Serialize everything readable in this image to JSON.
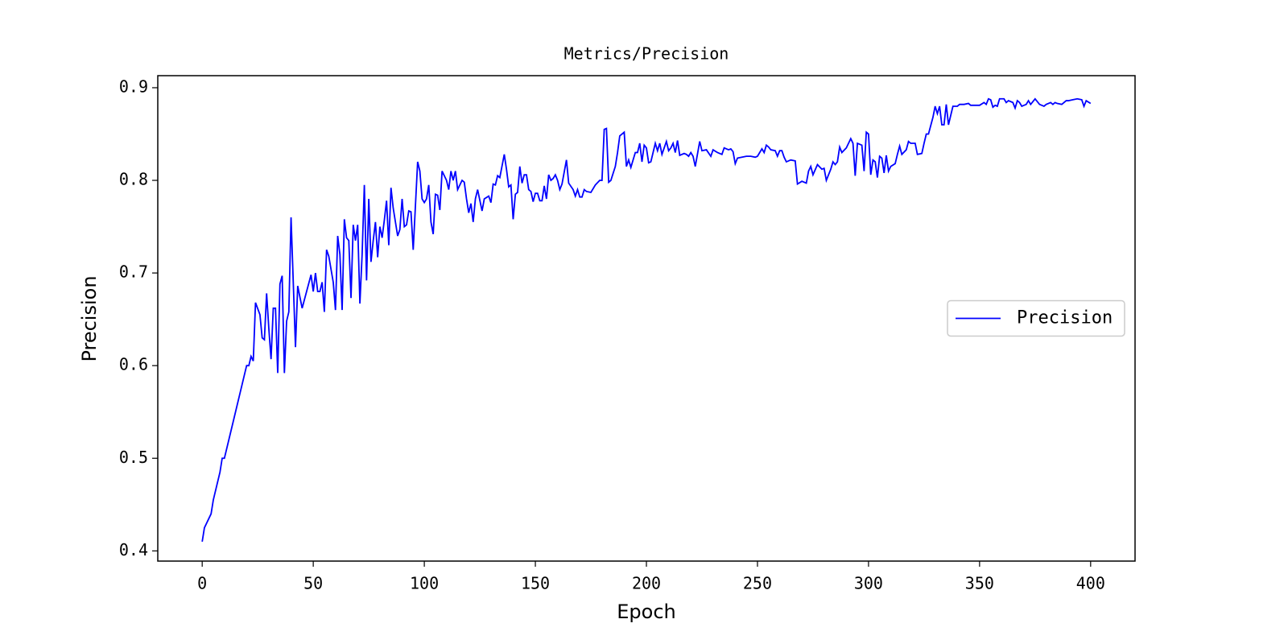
{
  "chart_data": {
    "type": "line",
    "title": "Metrics/Precision",
    "x_label": "Epoch",
    "y_label": "Precision",
    "x": [
      0,
      1,
      3,
      4,
      5,
      8,
      9,
      10,
      12,
      15,
      18,
      20,
      21,
      22,
      23,
      24,
      26,
      27,
      28,
      29,
      30,
      31,
      32,
      33,
      34,
      35,
      36,
      37,
      38,
      39,
      40,
      42,
      43,
      45,
      47,
      49,
      50,
      51,
      52,
      53,
      54,
      55,
      56,
      57,
      59,
      60,
      61,
      62,
      63,
      64,
      65,
      66,
      67,
      68,
      69,
      70,
      71,
      72,
      73,
      74,
      75,
      76,
      77,
      78,
      79,
      80,
      81,
      82,
      83,
      84,
      85,
      86,
      88,
      89,
      90,
      91,
      92,
      93,
      94,
      95,
      97,
      98,
      99,
      100,
      101,
      102,
      103,
      104,
      105,
      106,
      107,
      108,
      110,
      111,
      112,
      113,
      114,
      115,
      117,
      118,
      119,
      120,
      121,
      122,
      123,
      124,
      126,
      127,
      129,
      130,
      131,
      132,
      133,
      134,
      136,
      137,
      138,
      139,
      140,
      141,
      142,
      143,
      144,
      145,
      146,
      147,
      148,
      149,
      150,
      151,
      152,
      153,
      154,
      155,
      156,
      157,
      158,
      159,
      160,
      161,
      162,
      164,
      165,
      167,
      168,
      169,
      170,
      171,
      172,
      173,
      175,
      177,
      179,
      180,
      181,
      182,
      183,
      184,
      186,
      187,
      188,
      190,
      191,
      192,
      193,
      195,
      196,
      197,
      198,
      199,
      200,
      201,
      202,
      203,
      204,
      205,
      206,
      207,
      209,
      210,
      211,
      212,
      213,
      214,
      215,
      217,
      218,
      219,
      220,
      221,
      222,
      224,
      225,
      227,
      229,
      230,
      232,
      234,
      235,
      237,
      238,
      239,
      240,
      241,
      243,
      245,
      247,
      249,
      250,
      252,
      253,
      254,
      255,
      256,
      258,
      259,
      260,
      261,
      262,
      263,
      265,
      267,
      268,
      270,
      272,
      273,
      274,
      275,
      277,
      279,
      280,
      281,
      283,
      284,
      285,
      286,
      287,
      288,
      290,
      292,
      293,
      294,
      295,
      297,
      298,
      299,
      300,
      301,
      302,
      303,
      304,
      305,
      306,
      307,
      308,
      309,
      310,
      312,
      313,
      314,
      315,
      317,
      318,
      319,
      321,
      322,
      324,
      325,
      326,
      327,
      329,
      330,
      331,
      332,
      333,
      334,
      335,
      336,
      337,
      338,
      340,
      341,
      343,
      345,
      346,
      350,
      352,
      353,
      354,
      355,
      356,
      357,
      358,
      359,
      361,
      362,
      363,
      365,
      366,
      367,
      368,
      369,
      371,
      372,
      373,
      375,
      377,
      379,
      380,
      382,
      383,
      384,
      385,
      387,
      389,
      390,
      392,
      394,
      396,
      397,
      398,
      400
    ],
    "series": [
      {
        "name": "Precision",
        "color": "#0000ff",
        "values": [
          0.41,
          0.425,
          0.435,
          0.44,
          0.455,
          0.485,
          0.5,
          0.5,
          0.52,
          0.55,
          0.58,
          0.6,
          0.6,
          0.61,
          0.605,
          0.668,
          0.655,
          0.63,
          0.628,
          0.678,
          0.64,
          0.607,
          0.662,
          0.662,
          0.592,
          0.688,
          0.697,
          0.592,
          0.648,
          0.658,
          0.76,
          0.62,
          0.686,
          0.662,
          0.68,
          0.698,
          0.68,
          0.7,
          0.68,
          0.68,
          0.69,
          0.658,
          0.725,
          0.718,
          0.69,
          0.66,
          0.74,
          0.72,
          0.66,
          0.758,
          0.738,
          0.735,
          0.673,
          0.752,
          0.735,
          0.752,
          0.667,
          0.72,
          0.795,
          0.692,
          0.78,
          0.712,
          0.735,
          0.755,
          0.717,
          0.75,
          0.738,
          0.757,
          0.778,
          0.73,
          0.792,
          0.77,
          0.74,
          0.747,
          0.78,
          0.75,
          0.752,
          0.767,
          0.766,
          0.725,
          0.82,
          0.81,
          0.78,
          0.776,
          0.78,
          0.795,
          0.755,
          0.742,
          0.785,
          0.784,
          0.768,
          0.81,
          0.8,
          0.79,
          0.81,
          0.8,
          0.81,
          0.79,
          0.8,
          0.798,
          0.78,
          0.765,
          0.775,
          0.755,
          0.78,
          0.79,
          0.767,
          0.78,
          0.783,
          0.776,
          0.796,
          0.795,
          0.805,
          0.803,
          0.828,
          0.812,
          0.793,
          0.795,
          0.758,
          0.785,
          0.787,
          0.815,
          0.797,
          0.806,
          0.806,
          0.79,
          0.788,
          0.777,
          0.786,
          0.786,
          0.778,
          0.778,
          0.794,
          0.78,
          0.806,
          0.8,
          0.802,
          0.806,
          0.8,
          0.79,
          0.796,
          0.822,
          0.797,
          0.79,
          0.783,
          0.79,
          0.782,
          0.782,
          0.79,
          0.788,
          0.787,
          0.795,
          0.8,
          0.8,
          0.855,
          0.856,
          0.798,
          0.8,
          0.815,
          0.83,
          0.848,
          0.852,
          0.815,
          0.822,
          0.814,
          0.83,
          0.83,
          0.84,
          0.82,
          0.838,
          0.835,
          0.819,
          0.82,
          0.83,
          0.84,
          0.832,
          0.84,
          0.828,
          0.842,
          0.832,
          0.835,
          0.84,
          0.83,
          0.843,
          0.827,
          0.829,
          0.828,
          0.826,
          0.83,
          0.826,
          0.815,
          0.842,
          0.832,
          0.833,
          0.826,
          0.833,
          0.83,
          0.828,
          0.835,
          0.833,
          0.834,
          0.831,
          0.818,
          0.824,
          0.825,
          0.826,
          0.826,
          0.825,
          0.826,
          0.834,
          0.83,
          0.838,
          0.836,
          0.833,
          0.832,
          0.826,
          0.832,
          0.832,
          0.825,
          0.82,
          0.822,
          0.821,
          0.796,
          0.799,
          0.797,
          0.81,
          0.815,
          0.806,
          0.817,
          0.812,
          0.813,
          0.8,
          0.812,
          0.82,
          0.817,
          0.82,
          0.836,
          0.83,
          0.835,
          0.845,
          0.84,
          0.805,
          0.84,
          0.838,
          0.81,
          0.852,
          0.85,
          0.806,
          0.822,
          0.82,
          0.803,
          0.826,
          0.824,
          0.808,
          0.827,
          0.81,
          0.815,
          0.818,
          0.828,
          0.837,
          0.828,
          0.833,
          0.842,
          0.84,
          0.84,
          0.828,
          0.829,
          0.84,
          0.85,
          0.85,
          0.868,
          0.88,
          0.872,
          0.88,
          0.86,
          0.86,
          0.882,
          0.86,
          0.87,
          0.88,
          0.88,
          0.882,
          0.882,
          0.883,
          0.881,
          0.881,
          0.884,
          0.882,
          0.888,
          0.887,
          0.879,
          0.881,
          0.88,
          0.888,
          0.888,
          0.884,
          0.886,
          0.884,
          0.878,
          0.886,
          0.884,
          0.88,
          0.882,
          0.886,
          0.882,
          0.888,
          0.882,
          0.88,
          0.882,
          0.884,
          0.882,
          0.884,
          0.883,
          0.882,
          0.886,
          0.886,
          0.887,
          0.888,
          0.887,
          0.88,
          0.886,
          0.883
        ]
      }
    ],
    "xlim": [
      -20,
      420
    ],
    "ylim": [
      0.389,
      0.913
    ],
    "xticks": [
      0,
      50,
      100,
      150,
      200,
      250,
      300,
      350,
      400
    ],
    "yticks": [
      0.4,
      0.5,
      0.6,
      0.7,
      0.8,
      0.9
    ],
    "grid": false,
    "legend": "center right"
  }
}
